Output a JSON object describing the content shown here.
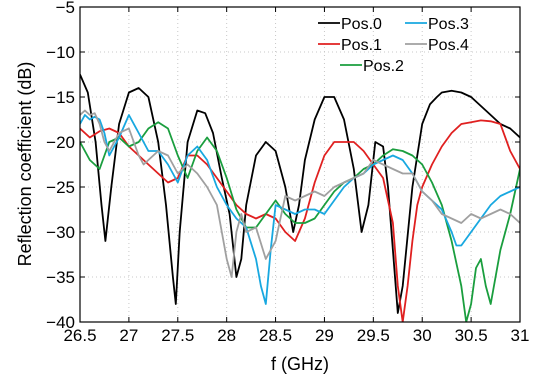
{
  "chart_data": {
    "type": "line",
    "xlabel": "f (GHz)",
    "ylabel": "Reflection coefficient (dB)",
    "xlim": [
      26.5,
      31
    ],
    "ylim": [
      -40,
      -5
    ],
    "xticks": [
      "26.5",
      "27",
      "27.5",
      "28",
      "28.5",
      "29",
      "29.5",
      "30",
      "30.5",
      "31"
    ],
    "yticks": [
      "-40",
      "-35",
      "-30",
      "-25",
      "-20",
      "-15",
      "-10",
      "-5"
    ],
    "grid": true,
    "legend_position": "top-right",
    "series": [
      {
        "name": "Pos.0",
        "color": "#000000",
        "x": [
          26.5,
          26.58,
          26.66,
          26.72,
          26.76,
          26.82,
          26.9,
          27.0,
          27.1,
          27.2,
          27.3,
          27.38,
          27.45,
          27.48,
          27.52,
          27.6,
          27.7,
          27.78,
          27.86,
          27.95,
          28.03,
          28.1,
          28.15,
          28.2,
          28.3,
          28.4,
          28.5,
          28.6,
          28.68,
          28.74,
          28.8,
          28.9,
          29.0,
          29.1,
          29.2,
          29.3,
          29.38,
          29.45,
          29.52,
          29.6,
          29.65,
          29.7,
          29.75,
          29.8,
          29.9,
          30.0,
          30.08,
          30.15,
          30.2,
          30.3,
          30.4,
          30.5,
          30.6,
          30.7,
          30.8,
          30.9,
          31.0
        ],
        "y": [
          -12.5,
          -14.5,
          -20,
          -27,
          -31,
          -25,
          -18,
          -14.5,
          -14,
          -15,
          -20,
          -27,
          -35,
          -38,
          -30,
          -20,
          -16.5,
          -16.8,
          -19,
          -24,
          -28,
          -35,
          -33,
          -27,
          -21.5,
          -20,
          -21,
          -25,
          -30,
          -27,
          -22,
          -17.5,
          -15,
          -15,
          -17.5,
          -23,
          -30,
          -27,
          -20,
          -20.5,
          -25,
          -32,
          -39,
          -36,
          -25,
          -18,
          -15.8,
          -15,
          -14.5,
          -14.3,
          -14.5,
          -15,
          -16,
          -17,
          -18,
          -18.5,
          -19.5
        ]
      },
      {
        "name": "Pos.1",
        "color": "#e02020",
        "x": [
          26.5,
          26.6,
          26.7,
          26.8,
          26.9,
          27.0,
          27.1,
          27.2,
          27.3,
          27.4,
          27.5,
          27.6,
          27.7,
          27.8,
          27.9,
          28.0,
          28.1,
          28.2,
          28.3,
          28.4,
          28.5,
          28.6,
          28.7,
          28.8,
          28.9,
          29.0,
          29.1,
          29.2,
          29.3,
          29.4,
          29.5,
          29.6,
          29.7,
          29.75,
          29.8,
          29.85,
          29.9,
          29.95,
          30.0,
          30.1,
          30.2,
          30.3,
          30.4,
          30.5,
          30.6,
          30.7,
          30.8,
          30.9,
          31.0
        ],
        "y": [
          -18.5,
          -19.5,
          -18.8,
          -18.5,
          -19,
          -20.5,
          -21.5,
          -22.5,
          -23.5,
          -24.5,
          -24,
          -21.5,
          -21.5,
          -22.5,
          -24,
          -25.5,
          -27,
          -28,
          -28.5,
          -28,
          -28.5,
          -30,
          -31,
          -28.5,
          -24.5,
          -21.5,
          -20,
          -20,
          -20,
          -21,
          -22.5,
          -24,
          -29,
          -36,
          -40,
          -36,
          -31,
          -27,
          -25,
          -22.5,
          -20.5,
          -19,
          -18,
          -17.8,
          -17.6,
          -17.7,
          -18,
          -21,
          -23
        ]
      },
      {
        "name": "Pos.2",
        "color": "#1a9e3e",
        "x": [
          26.5,
          26.6,
          26.7,
          26.8,
          26.9,
          27.0,
          27.1,
          27.2,
          27.3,
          27.4,
          27.5,
          27.6,
          27.7,
          27.8,
          27.9,
          28.0,
          28.1,
          28.2,
          28.3,
          28.4,
          28.5,
          28.6,
          28.7,
          28.8,
          28.9,
          29.0,
          29.1,
          29.2,
          29.3,
          29.4,
          29.5,
          29.6,
          29.7,
          29.8,
          29.9,
          30.0,
          30.1,
          30.2,
          30.3,
          30.4,
          30.45,
          30.5,
          30.55,
          30.6,
          30.65,
          30.7,
          30.8,
          30.9,
          31.0
        ],
        "y": [
          -20,
          -22,
          -23,
          -20,
          -19.5,
          -20.5,
          -20,
          -18.5,
          -17.8,
          -18.5,
          -21.5,
          -24,
          -21,
          -19.5,
          -21,
          -24,
          -27.5,
          -29.5,
          -29.5,
          -28,
          -26.5,
          -28,
          -29,
          -29,
          -28.5,
          -27,
          -25.5,
          -24.5,
          -24,
          -23,
          -22.5,
          -21.5,
          -20.8,
          -21,
          -21.5,
          -22.5,
          -24.5,
          -27,
          -31,
          -36,
          -40,
          -38,
          -34,
          -33,
          -36,
          -38,
          -32,
          -28,
          -23
        ]
      },
      {
        "name": "Pos.3",
        "color": "#18a8e0",
        "x": [
          26.5,
          26.55,
          26.6,
          26.65,
          26.7,
          26.75,
          26.8,
          26.9,
          27.0,
          27.1,
          27.2,
          27.3,
          27.4,
          27.5,
          27.6,
          27.7,
          27.8,
          27.9,
          28.0,
          28.1,
          28.15,
          28.2,
          28.3,
          28.35,
          28.4,
          28.45,
          28.5,
          28.6,
          28.7,
          28.8,
          28.9,
          29.0,
          29.1,
          29.2,
          29.3,
          29.4,
          29.5,
          29.6,
          29.7,
          29.8,
          29.9,
          30.0,
          30.1,
          30.2,
          30.3,
          30.35,
          30.4,
          30.5,
          30.6,
          30.7,
          30.8,
          30.9,
          31.0
        ],
        "y": [
          -18,
          -17,
          -17.5,
          -17.2,
          -17.5,
          -19,
          -21.5,
          -19.5,
          -17,
          -19,
          -21,
          -21,
          -22.5,
          -24.5,
          -21.5,
          -20.5,
          -22,
          -25,
          -27,
          -28.5,
          -29,
          -29.5,
          -33,
          -36,
          -38,
          -32,
          -27,
          -27.5,
          -28,
          -27.5,
          -27.5,
          -28,
          -26.5,
          -25,
          -24,
          -23.5,
          -22.5,
          -22,
          -21.5,
          -22,
          -23.5,
          -25.5,
          -26.5,
          -27.5,
          -30,
          -31.5,
          -31.5,
          -30,
          -28.5,
          -27,
          -26,
          -25.5,
          -25
        ]
      },
      {
        "name": "Pos.4",
        "color": "#a0a0a0",
        "x": [
          26.5,
          26.55,
          26.6,
          26.65,
          26.7,
          26.75,
          26.8,
          26.85,
          26.9,
          27.0,
          27.1,
          27.15,
          27.2,
          27.3,
          27.4,
          27.5,
          27.6,
          27.7,
          27.8,
          27.9,
          27.95,
          28.0,
          28.05,
          28.1,
          28.15,
          28.2,
          28.3,
          28.4,
          28.5,
          28.6,
          28.7,
          28.8,
          28.9,
          29.0,
          29.1,
          29.2,
          29.3,
          29.4,
          29.5,
          29.6,
          29.7,
          29.8,
          29.9,
          30.0,
          30.1,
          30.2,
          30.3,
          30.4,
          30.5,
          30.6,
          30.7,
          30.8,
          30.9,
          31.0
        ],
        "y": [
          -17,
          -16.5,
          -17,
          -16.8,
          -18,
          -20,
          -21,
          -20,
          -19,
          -18.5,
          -21.5,
          -22.5,
          -22,
          -21,
          -21.5,
          -23.5,
          -22.5,
          -23.5,
          -25,
          -27,
          -30,
          -33,
          -35,
          -30,
          -28,
          -30,
          -29.5,
          -33,
          -31,
          -26,
          -26.5,
          -26,
          -25.5,
          -26,
          -25,
          -24.5,
          -24,
          -23.5,
          -22,
          -22.5,
          -23,
          -23.5,
          -23.5,
          -25.5,
          -26.5,
          -28,
          -28.5,
          -29,
          -28,
          -28.5,
          -28,
          -27.5,
          -28,
          -29
        ]
      }
    ]
  }
}
